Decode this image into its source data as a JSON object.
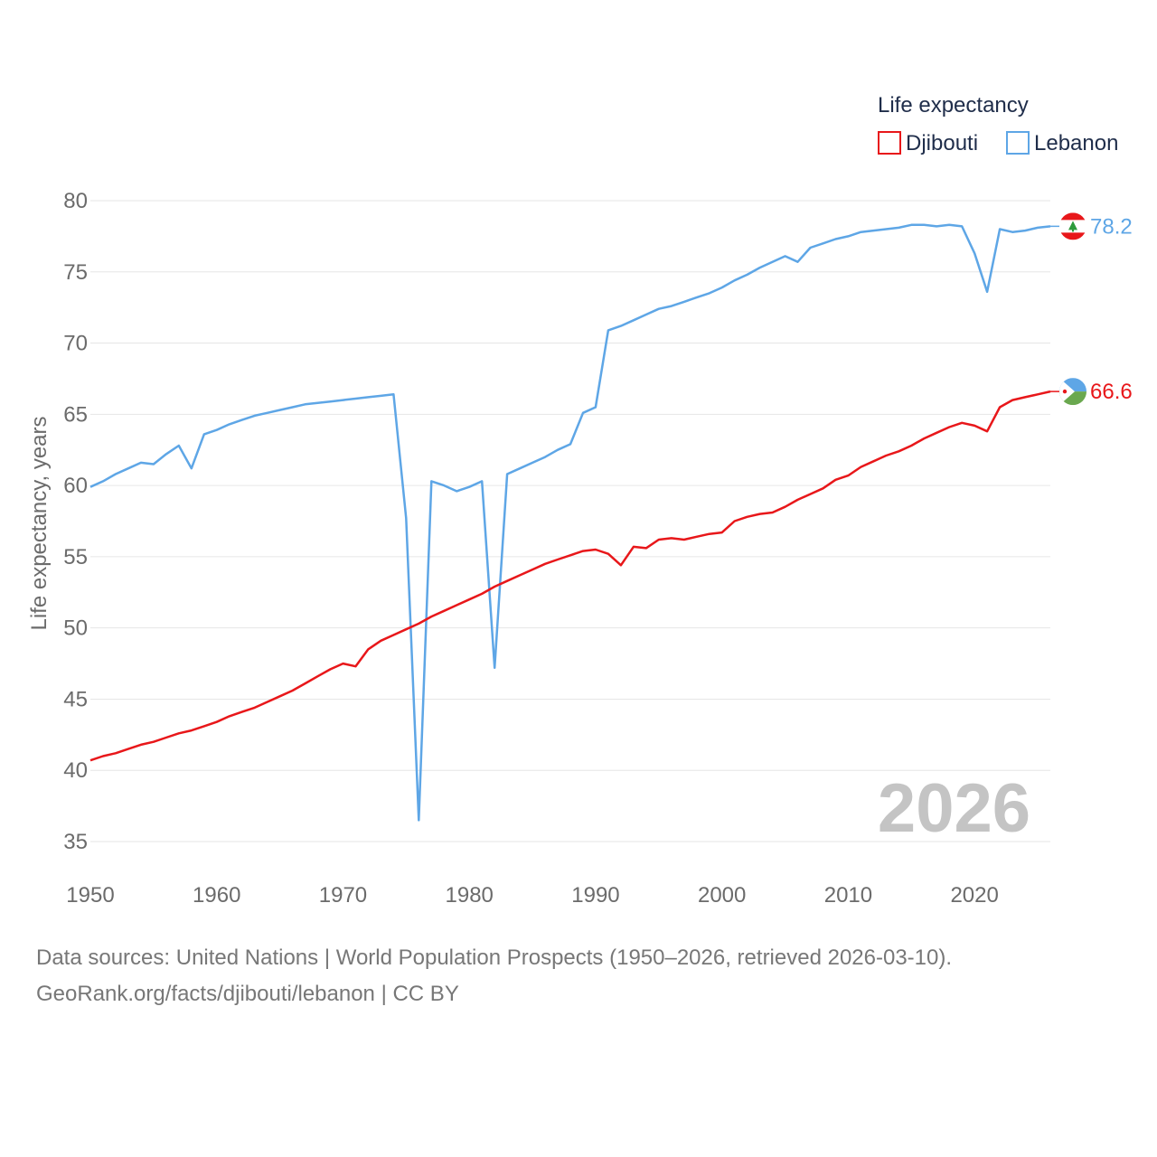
{
  "colors": {
    "djibouti": "#e8171a",
    "lebanon": "#5ea6e6"
  },
  "icons": {
    "djibouti_end": "djibouti-flag-icon",
    "lebanon_end": "lebanon-flag-icon"
  },
  "chart_data": {
    "type": "line",
    "title": "",
    "legend_title": "Life expectancy",
    "legend_position": "top-right",
    "xlabel": "",
    "ylabel": "Life expectancy, years",
    "xlim": [
      1950,
      2026
    ],
    "ylim": [
      35,
      80
    ],
    "x_ticks": [
      1950,
      1960,
      1970,
      1980,
      1990,
      2000,
      2010,
      2020
    ],
    "y_ticks": [
      35,
      40,
      45,
      50,
      55,
      60,
      65,
      70,
      75,
      80
    ],
    "year_label": "2026",
    "x": [
      1950,
      1951,
      1952,
      1953,
      1954,
      1955,
      1956,
      1957,
      1958,
      1959,
      1960,
      1961,
      1962,
      1963,
      1964,
      1965,
      1966,
      1967,
      1968,
      1969,
      1970,
      1971,
      1972,
      1973,
      1974,
      1975,
      1976,
      1977,
      1978,
      1979,
      1980,
      1981,
      1982,
      1983,
      1984,
      1985,
      1986,
      1987,
      1988,
      1989,
      1990,
      1991,
      1992,
      1993,
      1994,
      1995,
      1996,
      1997,
      1998,
      1999,
      2000,
      2001,
      2002,
      2003,
      2004,
      2005,
      2006,
      2007,
      2008,
      2009,
      2010,
      2011,
      2012,
      2013,
      2014,
      2015,
      2016,
      2017,
      2018,
      2019,
      2020,
      2021,
      2022,
      2023,
      2024,
      2025,
      2026
    ],
    "series": [
      {
        "name": "Djibouti",
        "end_label": "66.6",
        "values": [
          40.7,
          41.0,
          41.2,
          41.5,
          41.8,
          42.0,
          42.3,
          42.6,
          42.8,
          43.1,
          43.4,
          43.8,
          44.1,
          44.4,
          44.8,
          45.2,
          45.6,
          46.1,
          46.6,
          47.1,
          47.5,
          47.3,
          48.5,
          49.1,
          49.5,
          49.9,
          50.3,
          50.8,
          51.2,
          51.6,
          52.0,
          52.4,
          52.9,
          53.3,
          53.7,
          54.1,
          54.5,
          54.8,
          55.1,
          55.4,
          55.5,
          55.2,
          54.4,
          55.7,
          55.6,
          56.2,
          56.3,
          56.2,
          56.4,
          56.6,
          56.7,
          57.5,
          57.8,
          58.0,
          58.1,
          58.5,
          59.0,
          59.4,
          59.8,
          60.4,
          60.7,
          61.3,
          61.7,
          62.1,
          62.4,
          62.8,
          63.3,
          63.7,
          64.1,
          64.4,
          64.2,
          63.8,
          65.5,
          66.0,
          66.2,
          66.4,
          66.6
        ]
      },
      {
        "name": "Lebanon",
        "end_label": "78.2",
        "values": [
          59.9,
          60.3,
          60.8,
          61.2,
          61.6,
          61.5,
          62.2,
          62.8,
          61.2,
          63.6,
          63.9,
          64.3,
          64.6,
          64.9,
          65.1,
          65.3,
          65.5,
          65.7,
          65.8,
          65.9,
          66.0,
          66.1,
          66.2,
          66.3,
          66.4,
          57.7,
          36.5,
          60.3,
          60.0,
          59.6,
          59.9,
          60.3,
          47.2,
          60.8,
          61.2,
          61.6,
          62.0,
          62.5,
          62.9,
          65.1,
          65.5,
          70.9,
          71.2,
          71.6,
          72.0,
          72.4,
          72.6,
          72.9,
          73.2,
          73.5,
          73.9,
          74.4,
          74.8,
          75.3,
          75.7,
          76.1,
          75.7,
          76.7,
          77.0,
          77.3,
          77.5,
          77.8,
          77.9,
          78.0,
          78.1,
          78.3,
          78.3,
          78.2,
          78.3,
          78.2,
          76.3,
          73.6,
          78.0,
          77.8,
          77.9,
          78.1,
          78.2
        ]
      }
    ]
  },
  "footer": {
    "line1": "Data sources: United Nations | World Population Prospects (1950–2026, retrieved 2026-03-10).",
    "line2": "GeoRank.org/facts/djibouti/lebanon | CC BY"
  }
}
